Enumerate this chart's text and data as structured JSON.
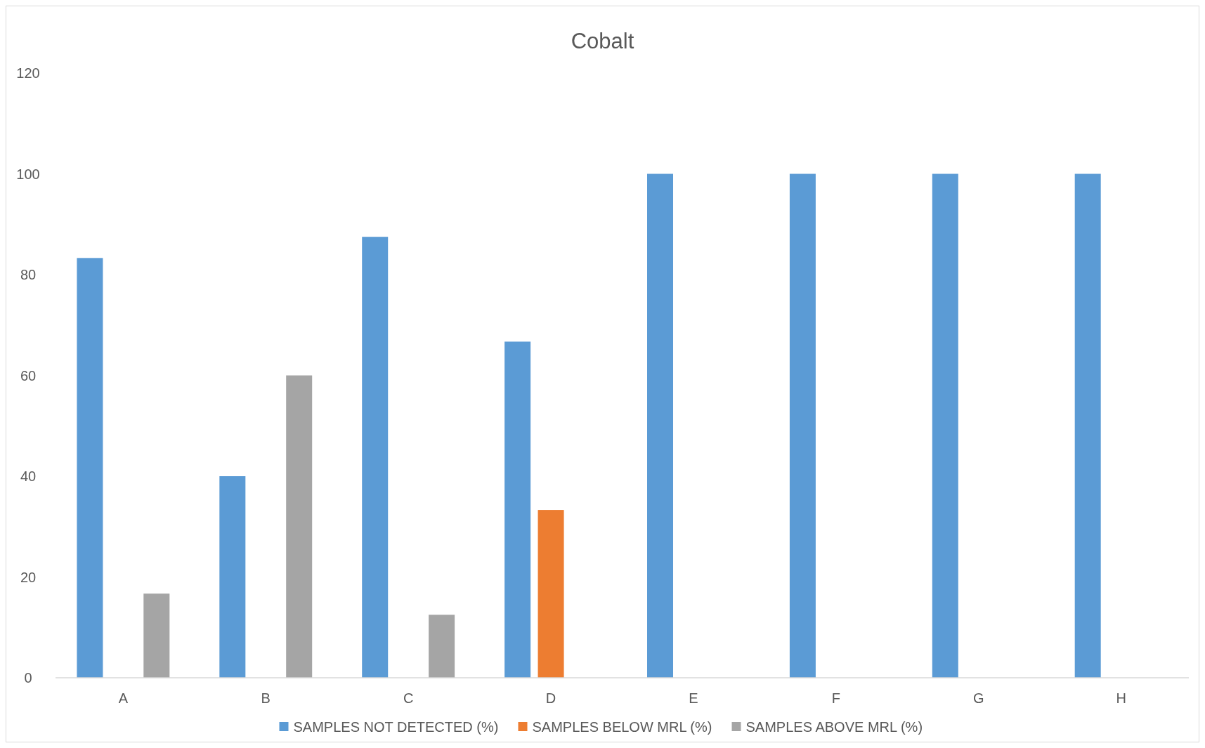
{
  "chart_data": {
    "type": "bar",
    "title": "Cobalt",
    "categories": [
      "A",
      "B",
      "C",
      "D",
      "E",
      "F",
      "G",
      "H"
    ],
    "series": [
      {
        "name": "SAMPLES NOT DETECTED (%)",
        "color": "#5b9bd5",
        "values": [
          83.3,
          40,
          87.5,
          66.7,
          100,
          100,
          100,
          100
        ]
      },
      {
        "name": "SAMPLES BELOW MRL (%)",
        "color": "#ed7d31",
        "values": [
          0,
          0,
          0,
          33.3,
          0,
          0,
          0,
          0
        ]
      },
      {
        "name": "SAMPLES ABOVE MRL (%)",
        "color": "#a5a5a5",
        "values": [
          16.7,
          60,
          12.5,
          0,
          0,
          0,
          0,
          0
        ]
      }
    ],
    "ylim": [
      0,
      120
    ],
    "yticks": [
      0,
      20,
      40,
      60,
      80,
      100,
      120
    ],
    "grid": false,
    "legend": "bottom"
  }
}
